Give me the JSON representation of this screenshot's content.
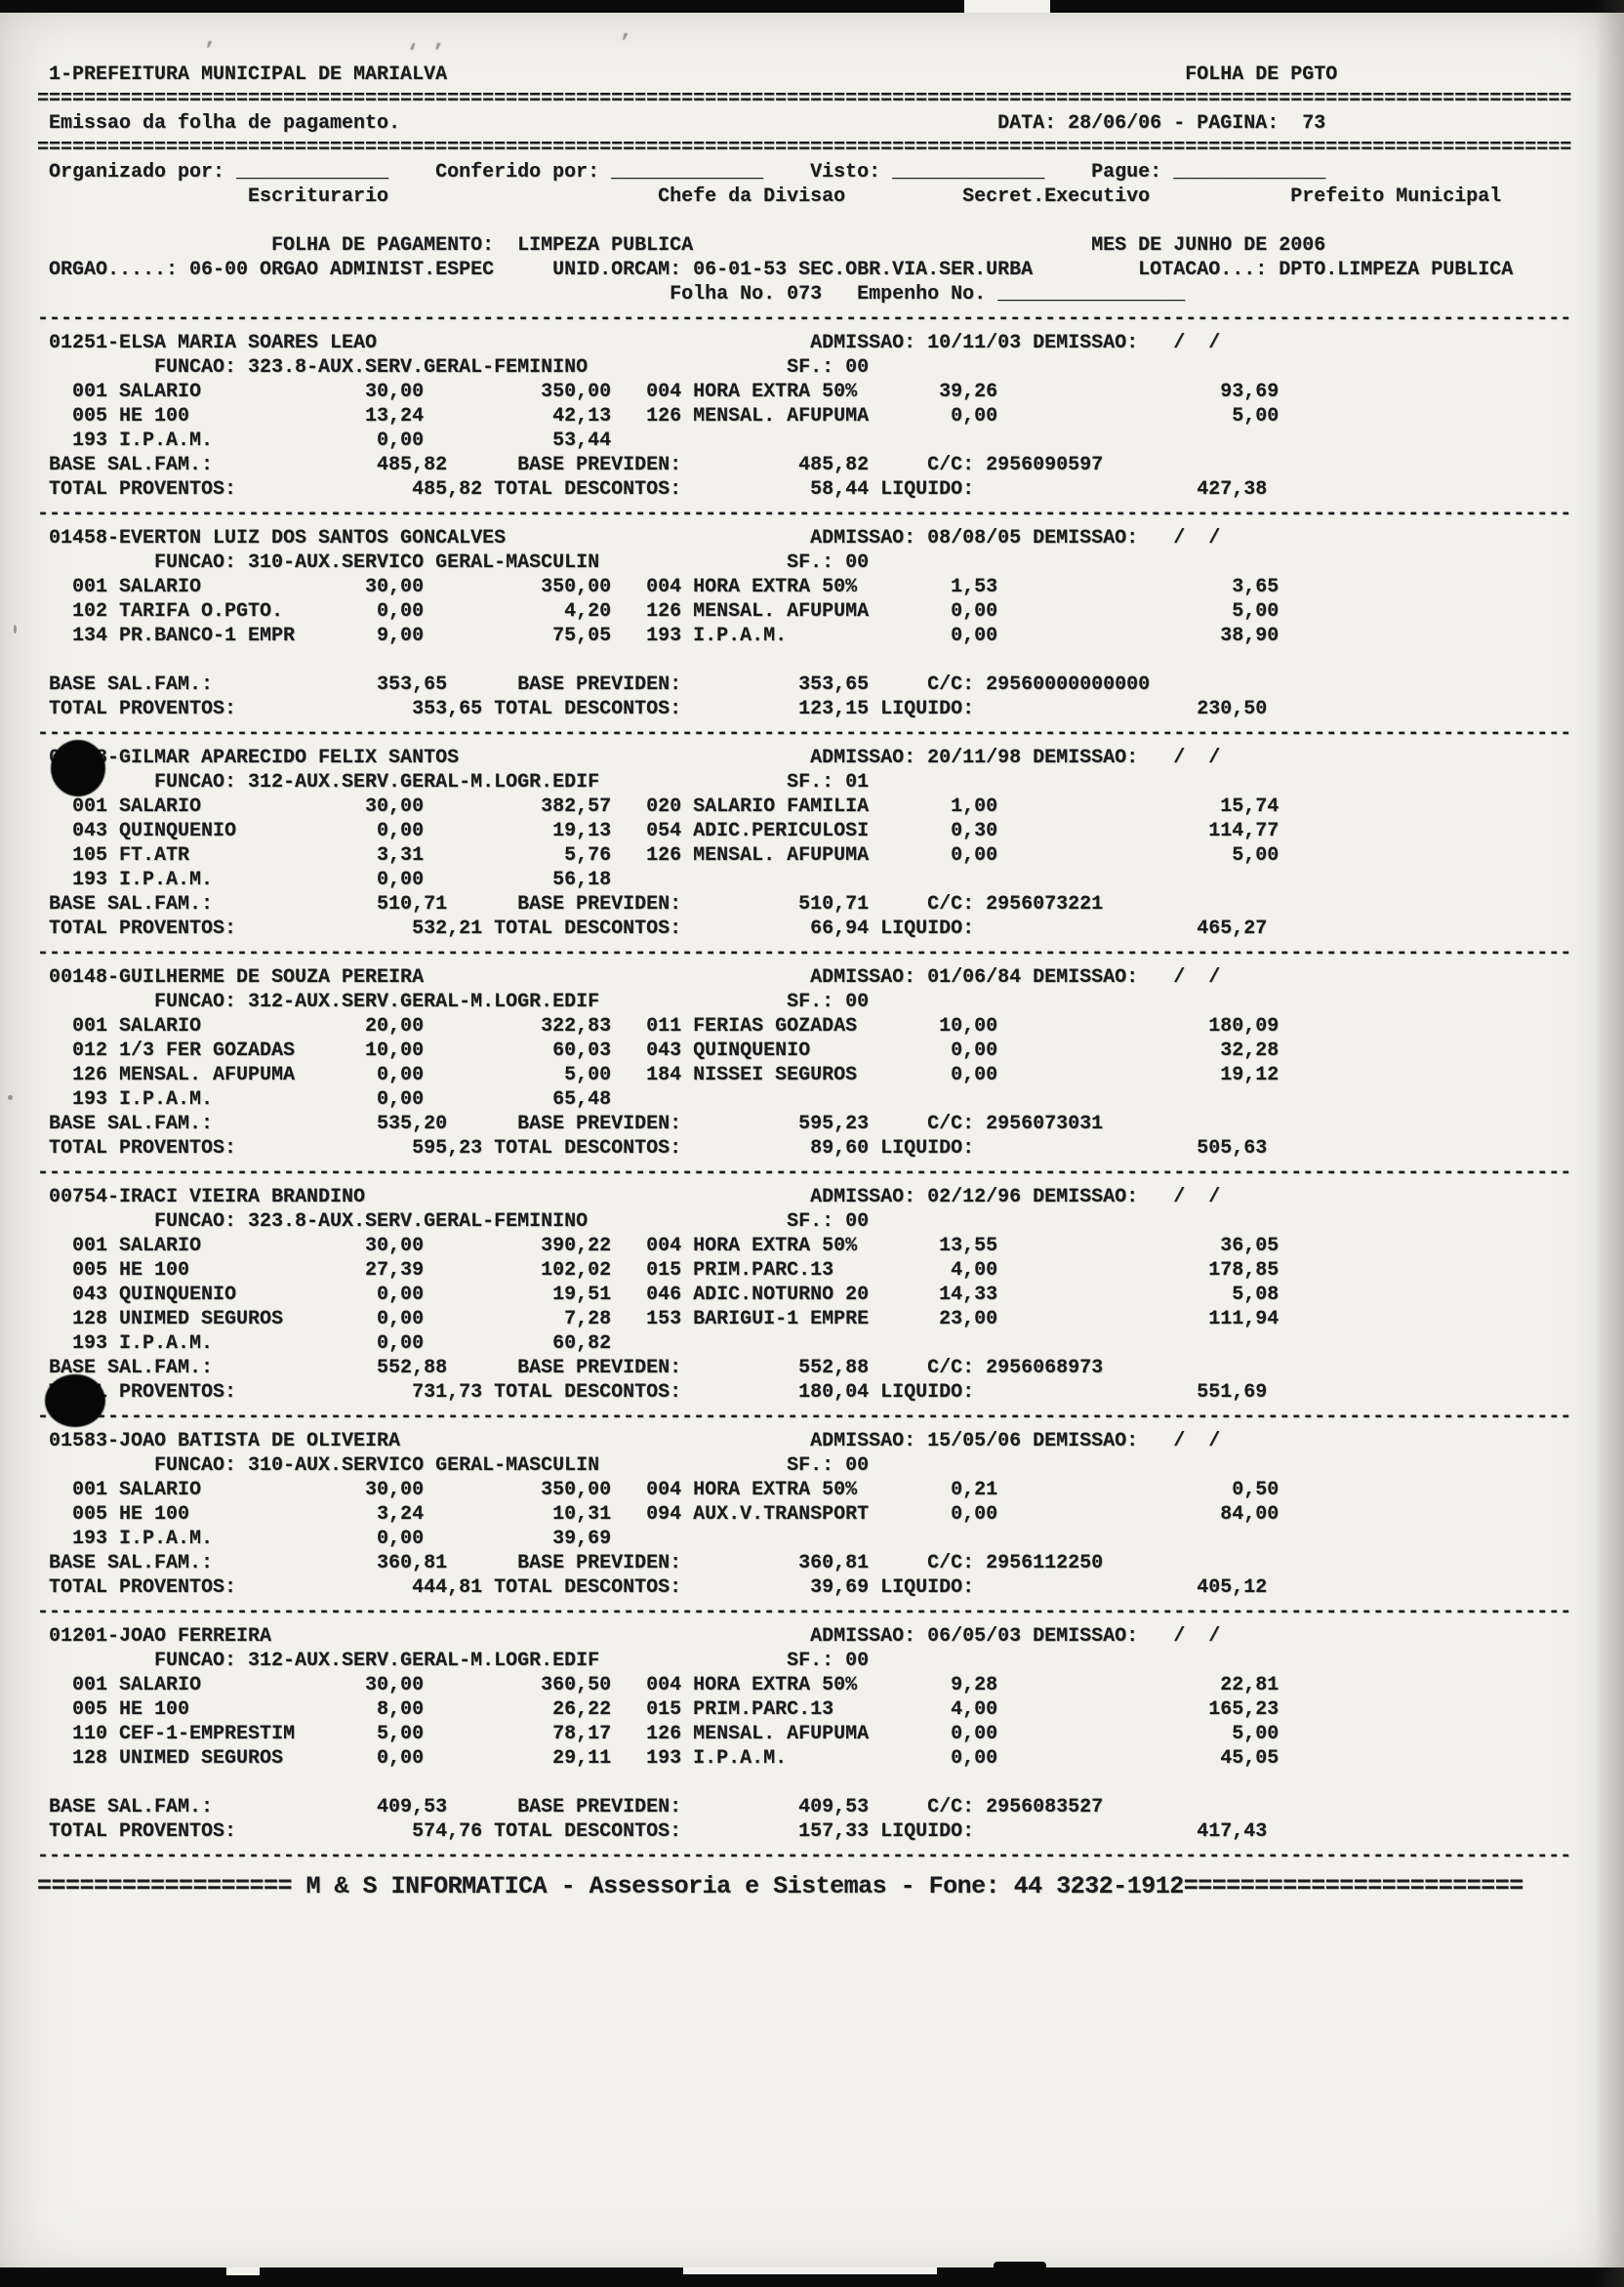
{
  "header": {
    "entity": "1-PREFEITURA MUNICIPAL DE MARIALVA",
    "doc_type": "FOLHA DE PGTO",
    "emission": "Emissao da folha de pagamento.",
    "date_page": "DATA: 28/06/06 - PAGINA:  73",
    "signatures": [
      {
        "label": "Organizado por:",
        "role": "Escriturario"
      },
      {
        "label": "Conferido por:",
        "role": "Chefe da Divisao"
      },
      {
        "label": "Visto:",
        "role": "Secret.Executivo"
      },
      {
        "label": "Pague:",
        "role": "Prefeito Municipal"
      }
    ],
    "payroll_label": "FOLHA DE PAGAMENTO:",
    "payroll_name": "LIMPEZA PUBLICA",
    "month": "MES DE JUNHO DE 2006",
    "orgao": "ORGAO.....: 06-00 ORGAO ADMINIST.ESPEC",
    "unid_orcam": "UNID.ORCAM: 06-01-53 SEC.OBR.VIA.SER.URBA",
    "lotacao": "LOTACAO...: DPTO.LIMPEZA PUBLICA",
    "folha_no": "Folha No. 073",
    "empenho_label": "Empenho No."
  },
  "employees": [
    {
      "id": "01251",
      "name": "ELSA MARIA SOARES LEAO",
      "admissao": "10/11/03",
      "demissao": "  /  /",
      "funcao": "323.8-AUX.SERV.GERAL-FEMININO",
      "sf": "00",
      "rows": [
        [
          "001",
          "SALARIO",
          "30,00",
          "350,00",
          "004",
          "HORA EXTRA 50%",
          "39,26",
          "93,69"
        ],
        [
          "005",
          "HE 100",
          "13,24",
          "42,13",
          "126",
          "MENSAL. AFUPUMA",
          "0,00",
          "5,00"
        ],
        [
          "193",
          "I.P.A.M.",
          "0,00",
          "53,44"
        ]
      ],
      "base_sal_fam": "485,82",
      "base_previden": "485,82",
      "cc": "2956090597",
      "total_proventos": "485,82",
      "total_descontos": "58,44",
      "liquido": "427,38",
      "gap_before_base": false
    },
    {
      "id": "01458",
      "name": "EVERTON LUIZ DOS SANTOS GONCALVES",
      "admissao": "08/08/05",
      "demissao": "  /  /",
      "funcao": "310-AUX.SERVICO GERAL-MASCULIN",
      "sf": "00",
      "rows": [
        [
          "001",
          "SALARIO",
          "30,00",
          "350,00",
          "004",
          "HORA EXTRA 50%",
          "1,53",
          "3,65"
        ],
        [
          "102",
          "TARIFA O.PGTO.",
          "0,00",
          "4,20",
          "126",
          "MENSAL. AFUPUMA",
          "0,00",
          "5,00"
        ],
        [
          "134",
          "PR.BANCO-1 EMPR",
          "9,00",
          "75,05",
          "193",
          "I.P.A.M.",
          "0,00",
          "38,90"
        ]
      ],
      "base_sal_fam": "353,65",
      "base_previden": "353,65",
      "cc": "29560000000000",
      "total_proventos": "353,65",
      "total_descontos": "123,15",
      "liquido": "230,50",
      "gap_before_base": true
    },
    {
      "id": "01528",
      "name": "GILMAR APARECIDO FELIX SANTOS",
      "admissao": "20/11/98",
      "demissao": "  /  /",
      "funcao": "312-AUX.SERV.GERAL-M.LOGR.EDIF",
      "sf": "01",
      "rows": [
        [
          "001",
          "SALARIO",
          "30,00",
          "382,57",
          "020",
          "SALARIO FAMILIA",
          "1,00",
          "15,74"
        ],
        [
          "043",
          "QUINQUENIO",
          "0,00",
          "19,13",
          "054",
          "ADIC.PERICULOSI",
          "0,30",
          "114,77"
        ],
        [
          "105",
          "FT.ATR",
          "3,31",
          "5,76",
          "126",
          "MENSAL. AFUPUMA",
          "0,00",
          "5,00"
        ],
        [
          "193",
          "I.P.A.M.",
          "0,00",
          "56,18"
        ]
      ],
      "base_sal_fam": "510,71",
      "base_previden": "510,71",
      "cc": "2956073221",
      "total_proventos": "532,21",
      "total_descontos": "66,94",
      "liquido": "465,27",
      "gap_before_base": false
    },
    {
      "id": "00148",
      "name": "GUILHERME DE SOUZA PEREIRA",
      "admissao": "01/06/84",
      "demissao": "  /  /",
      "funcao": "312-AUX.SERV.GERAL-M.LOGR.EDIF",
      "sf": "00",
      "rows": [
        [
          "001",
          "SALARIO",
          "20,00",
          "322,83",
          "011",
          "FERIAS GOZADAS",
          "10,00",
          "180,09"
        ],
        [
          "012",
          "1/3 FER GOZADAS",
          "10,00",
          "60,03",
          "043",
          "QUINQUENIO",
          "0,00",
          "32,28"
        ],
        [
          "126",
          "MENSAL. AFUPUMA",
          "0,00",
          "5,00",
          "184",
          "NISSEI SEGUROS",
          "0,00",
          "19,12"
        ],
        [
          "193",
          "I.P.A.M.",
          "0,00",
          "65,48"
        ]
      ],
      "base_sal_fam": "535,20",
      "base_previden": "595,23",
      "cc": "2956073031",
      "total_proventos": "595,23",
      "total_descontos": "89,60",
      "liquido": "505,63",
      "gap_before_base": false
    },
    {
      "id": "00754",
      "name": "IRACI VIEIRA BRANDINO",
      "admissao": "02/12/96",
      "demissao": "  /  /",
      "funcao": "323.8-AUX.SERV.GERAL-FEMININO",
      "sf": "00",
      "rows": [
        [
          "001",
          "SALARIO",
          "30,00",
          "390,22",
          "004",
          "HORA EXTRA 50%",
          "13,55",
          "36,05"
        ],
        [
          "005",
          "HE 100",
          "27,39",
          "102,02",
          "015",
          "PRIM.PARC.13",
          "4,00",
          "178,85"
        ],
        [
          "043",
          "QUINQUENIO",
          "0,00",
          "19,51",
          "046",
          "ADIC.NOTURNO 20",
          "14,33",
          "5,08"
        ],
        [
          "128",
          "UNIMED SEGUROS",
          "0,00",
          "7,28",
          "153",
          "BARIGUI-1 EMPRE",
          "23,00",
          "111,94"
        ],
        [
          "193",
          "I.P.A.M.",
          "0,00",
          "60,82"
        ]
      ],
      "base_sal_fam": "552,88",
      "base_previden": "552,88",
      "cc": "2956068973",
      "total_proventos": "731,73",
      "total_descontos": "180,04",
      "liquido": "551,69",
      "gap_before_base": false
    },
    {
      "id": "01583",
      "name": "JOAO BATISTA DE OLIVEIRA",
      "admissao": "15/05/06",
      "demissao": "  /  /",
      "funcao": "310-AUX.SERVICO GERAL-MASCULIN",
      "sf": "00",
      "rows": [
        [
          "001",
          "SALARIO",
          "30,00",
          "350,00",
          "004",
          "HORA EXTRA 50%",
          "0,21",
          "0,50"
        ],
        [
          "005",
          "HE 100",
          "3,24",
          "10,31",
          "094",
          "AUX.V.TRANSPORT",
          "0,00",
          "84,00"
        ],
        [
          "193",
          "I.P.A.M.",
          "0,00",
          "39,69"
        ]
      ],
      "base_sal_fam": "360,81",
      "base_previden": "360,81",
      "cc": "2956112250",
      "total_proventos": "444,81",
      "total_descontos": "39,69",
      "liquido": "405,12",
      "gap_before_base": false
    },
    {
      "id": "01201",
      "name": "JOAO FERREIRA",
      "admissao": "06/05/03",
      "demissao": "  /  /",
      "funcao": "312-AUX.SERV.GERAL-M.LOGR.EDIF",
      "sf": "00",
      "rows": [
        [
          "001",
          "SALARIO",
          "30,00",
          "360,50",
          "004",
          "HORA EXTRA 50%",
          "9,28",
          "22,81"
        ],
        [
          "005",
          "HE 100",
          "8,00",
          "26,22",
          "015",
          "PRIM.PARC.13",
          "4,00",
          "165,23"
        ],
        [
          "110",
          "CEF-1-EMPRESTIM",
          "5,00",
          "78,17",
          "126",
          "MENSAL. AFUPUMA",
          "0,00",
          "5,00"
        ],
        [
          "128",
          "UNIMED SEGUROS",
          "0,00",
          "29,11",
          "193",
          "I.P.A.M.",
          "0,00",
          "45,05"
        ]
      ],
      "base_sal_fam": "409,53",
      "base_previden": "409,53",
      "cc": "2956083527",
      "total_proventos": "574,76",
      "total_descontos": "157,33",
      "liquido": "417,43",
      "gap_before_base": true
    }
  ],
  "row_labels": {
    "admissao": "ADMISSAO:",
    "demissao": "DEMISSAO:",
    "funcao": "FUNCAO:",
    "sf": "SF.:",
    "base_sal_fam": "BASE SAL.FAM.:",
    "base_previden": "BASE PREVIDEN:",
    "cc": "C/C:",
    "total_proventos": "TOTAL PROVENTOS:",
    "total_descontos": "TOTAL DESCONTOS:",
    "liquido": "LIQUIDO:"
  },
  "footer": "M & S INFORMATICA - Assessoria e Sistemas - Fone: 44 3232-1912"
}
